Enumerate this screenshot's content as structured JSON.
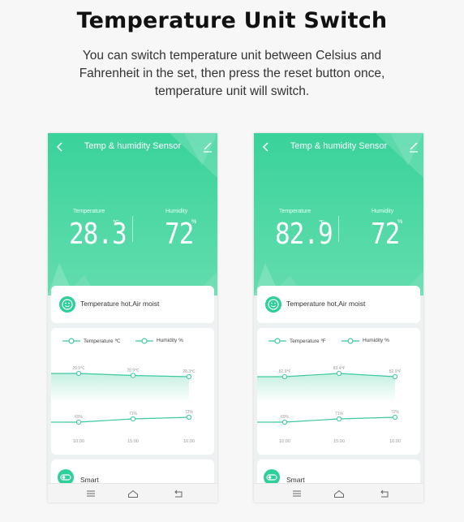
{
  "heading": "Temperature Unit Switch",
  "description": {
    "line1": "You can switch temperature unit between Celsius and",
    "line2": "Fahrenheit in the set, then press the reset button once,",
    "line3": "temperature unit will switch."
  },
  "colors": {
    "accent": "#3ad29b",
    "line": "#3cc9a0",
    "fill": "#bfeedd"
  },
  "phones": [
    {
      "title": "Temp & humidity Sensor",
      "temperature_label": "Temperature",
      "temperature_value": "28.3",
      "temperature_unit": "℃",
      "humidity_label": "Humidity",
      "humidity_value": "72",
      "humidity_unit": "%",
      "status": "Temperature hot,Air moist",
      "legend_temp": "Temperature ℃",
      "legend_hum": "Humidity %",
      "smart": "Smart",
      "chart_data": {
        "type": "line",
        "categories": [
          "10:00",
          "15:00",
          "16:00"
        ],
        "series": [
          {
            "name": "Temperature ℃",
            "values": [
              29.9,
              28.9,
              28.3
            ],
            "labels": [
              "29.9℃",
              "28.9℃",
              "28.3℃"
            ]
          },
          {
            "name": "Humidity %",
            "values": [
              69,
              71,
              72
            ],
            "labels": [
              "69%",
              "71%",
              "72%"
            ]
          }
        ]
      }
    },
    {
      "title": "Temp & humidity Sensor",
      "temperature_label": "Temperature",
      "temperature_value": "82.9",
      "temperature_unit": "℉",
      "humidity_label": "Humidity",
      "humidity_value": "72",
      "humidity_unit": "%",
      "status": "Temperature hot,Air moist",
      "legend_temp": "Temperature ℉",
      "legend_hum": "Humidity %",
      "smart": "Smart",
      "chart_data": {
        "type": "line",
        "categories": [
          "10:00",
          "15:00",
          "16:00"
        ],
        "series": [
          {
            "name": "Temperature ℉",
            "values": [
              82.9,
              83.4,
              82.9
            ],
            "labels": [
              "82.9℉",
              "83.4℉",
              "82.9℉"
            ]
          },
          {
            "name": "Humidity %",
            "values": [
              69,
              71,
              72
            ],
            "labels": [
              "69%",
              "71%",
              "72%"
            ]
          }
        ]
      }
    }
  ]
}
